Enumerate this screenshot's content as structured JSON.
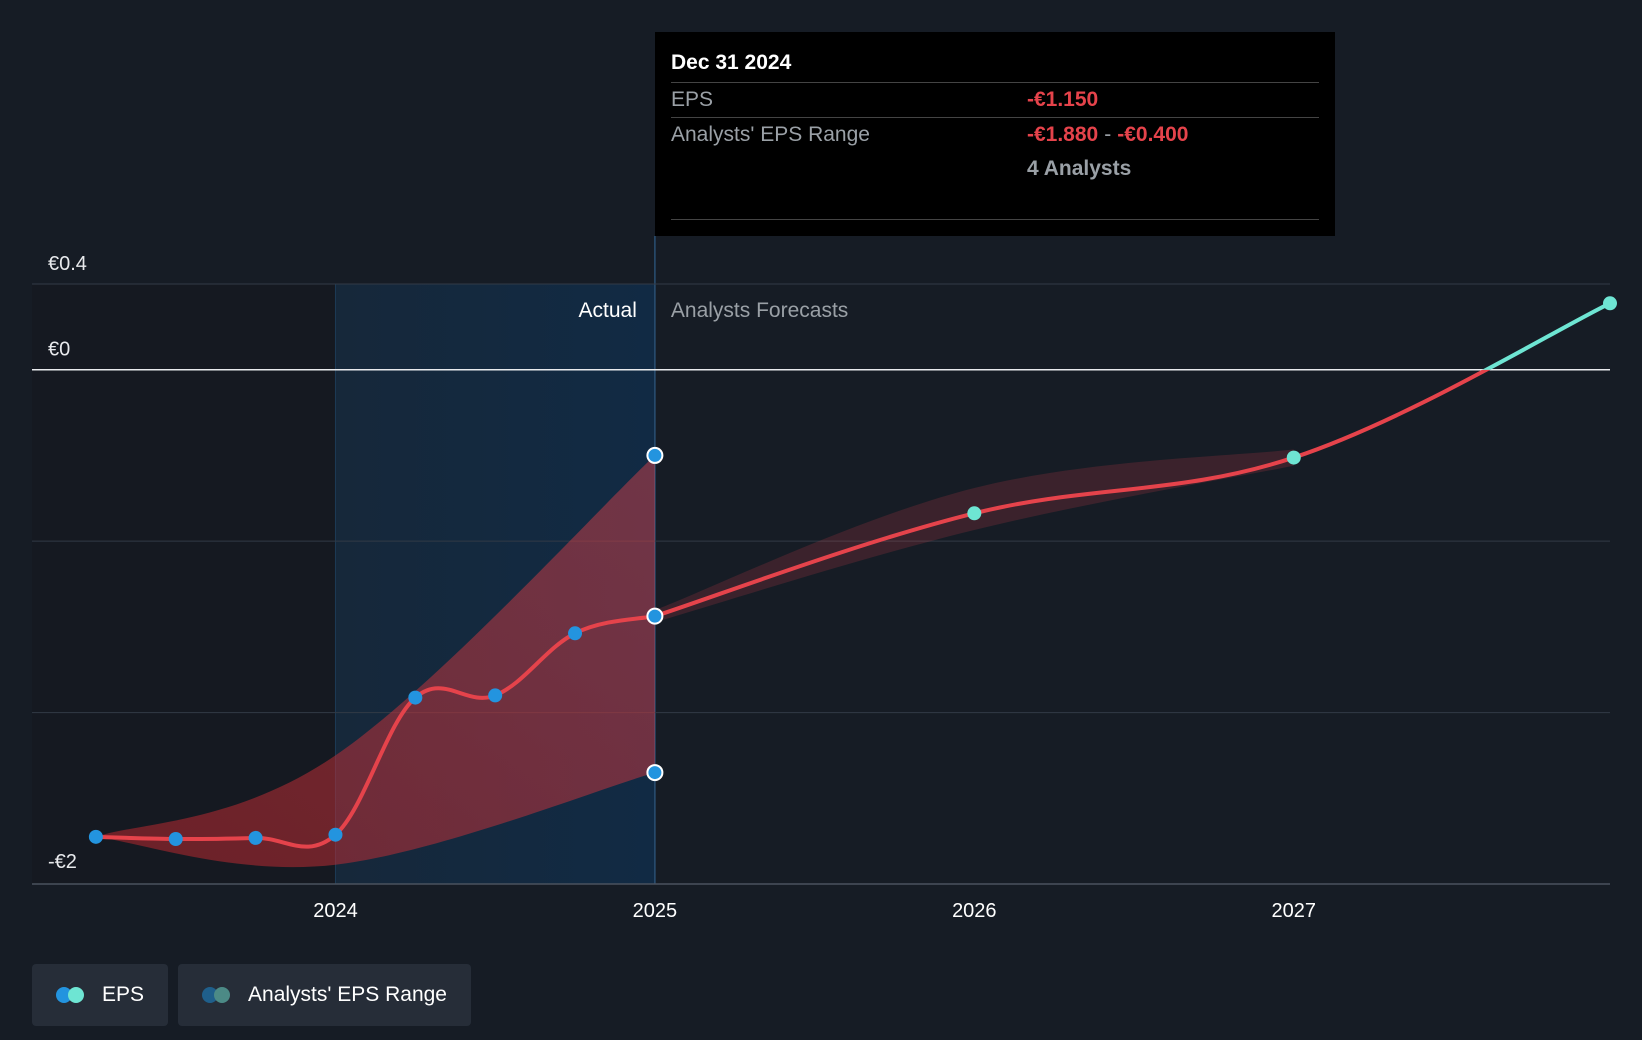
{
  "tooltip": {
    "date": "Dec 31 2024",
    "eps_label": "EPS",
    "eps_value": "-€1.150",
    "range_label": "Analysts' EPS Range",
    "range_low": "-€1.880",
    "range_sep": "-",
    "range_high": "-€0.400",
    "analysts": "4 Analysts"
  },
  "sections": {
    "actual": "Actual",
    "forecast": "Analysts Forecasts"
  },
  "legend": {
    "eps": "EPS",
    "range": "Analysts' EPS Range"
  },
  "colors": {
    "background": "#161c25",
    "eps_line": "#e5434b",
    "actual_point": "#2394df",
    "forecast_point": "#6ee5d3",
    "range_fill": "#e5434b"
  },
  "chart_data": {
    "type": "line",
    "y_ticks": [
      {
        "value": 0.4,
        "label": "€0.4"
      },
      {
        "value": 0.0,
        "label": "€0"
      },
      {
        "value": -2.0,
        "label": "-€2"
      }
    ],
    "x_ticks": [
      {
        "value": 2024.0,
        "label": "2024"
      },
      {
        "value": 2025.0,
        "label": "2025"
      },
      {
        "value": 2026.0,
        "label": "2026"
      },
      {
        "value": 2027.0,
        "label": "2027"
      }
    ],
    "xlim": [
      2023.05,
      2027.99
    ],
    "ylim": [
      -2.4,
      0.4
    ],
    "divider_x": 2025.0,
    "highlight_start": 2024.0,
    "series": [
      {
        "name": "EPS",
        "actual": [
          {
            "x": 2023.25,
            "y": -2.18
          },
          {
            "x": 2023.5,
            "y": -2.19
          },
          {
            "x": 2023.75,
            "y": -2.185
          },
          {
            "x": 2024.0,
            "y": -2.17
          },
          {
            "x": 2024.25,
            "y": -1.53
          },
          {
            "x": 2024.5,
            "y": -1.52
          },
          {
            "x": 2024.75,
            "y": -1.23
          },
          {
            "x": 2025.0,
            "y": -1.15
          }
        ],
        "forecast": [
          {
            "x": 2025.0,
            "y": -1.15
          },
          {
            "x": 2026.0,
            "y": -0.67
          },
          {
            "x": 2027.0,
            "y": -0.41
          },
          {
            "x": 2027.99,
            "y": 0.31
          }
        ]
      }
    ],
    "range": {
      "name": "Analysts' EPS Range",
      "points": [
        {
          "x": 2023.25,
          "low": -2.18,
          "high": -2.18
        },
        {
          "x": 2024.0,
          "low": -2.31,
          "high": -1.8
        },
        {
          "x": 2025.0,
          "low": -1.88,
          "high": -0.4
        }
      ],
      "forecast_band": [
        {
          "x": 2025.0,
          "low": -1.15,
          "high": -1.15
        },
        {
          "x": 2026.0,
          "low": -0.72,
          "high": -0.58
        },
        {
          "x": 2027.0,
          "low": -0.42,
          "high": -0.4
        }
      ]
    }
  }
}
